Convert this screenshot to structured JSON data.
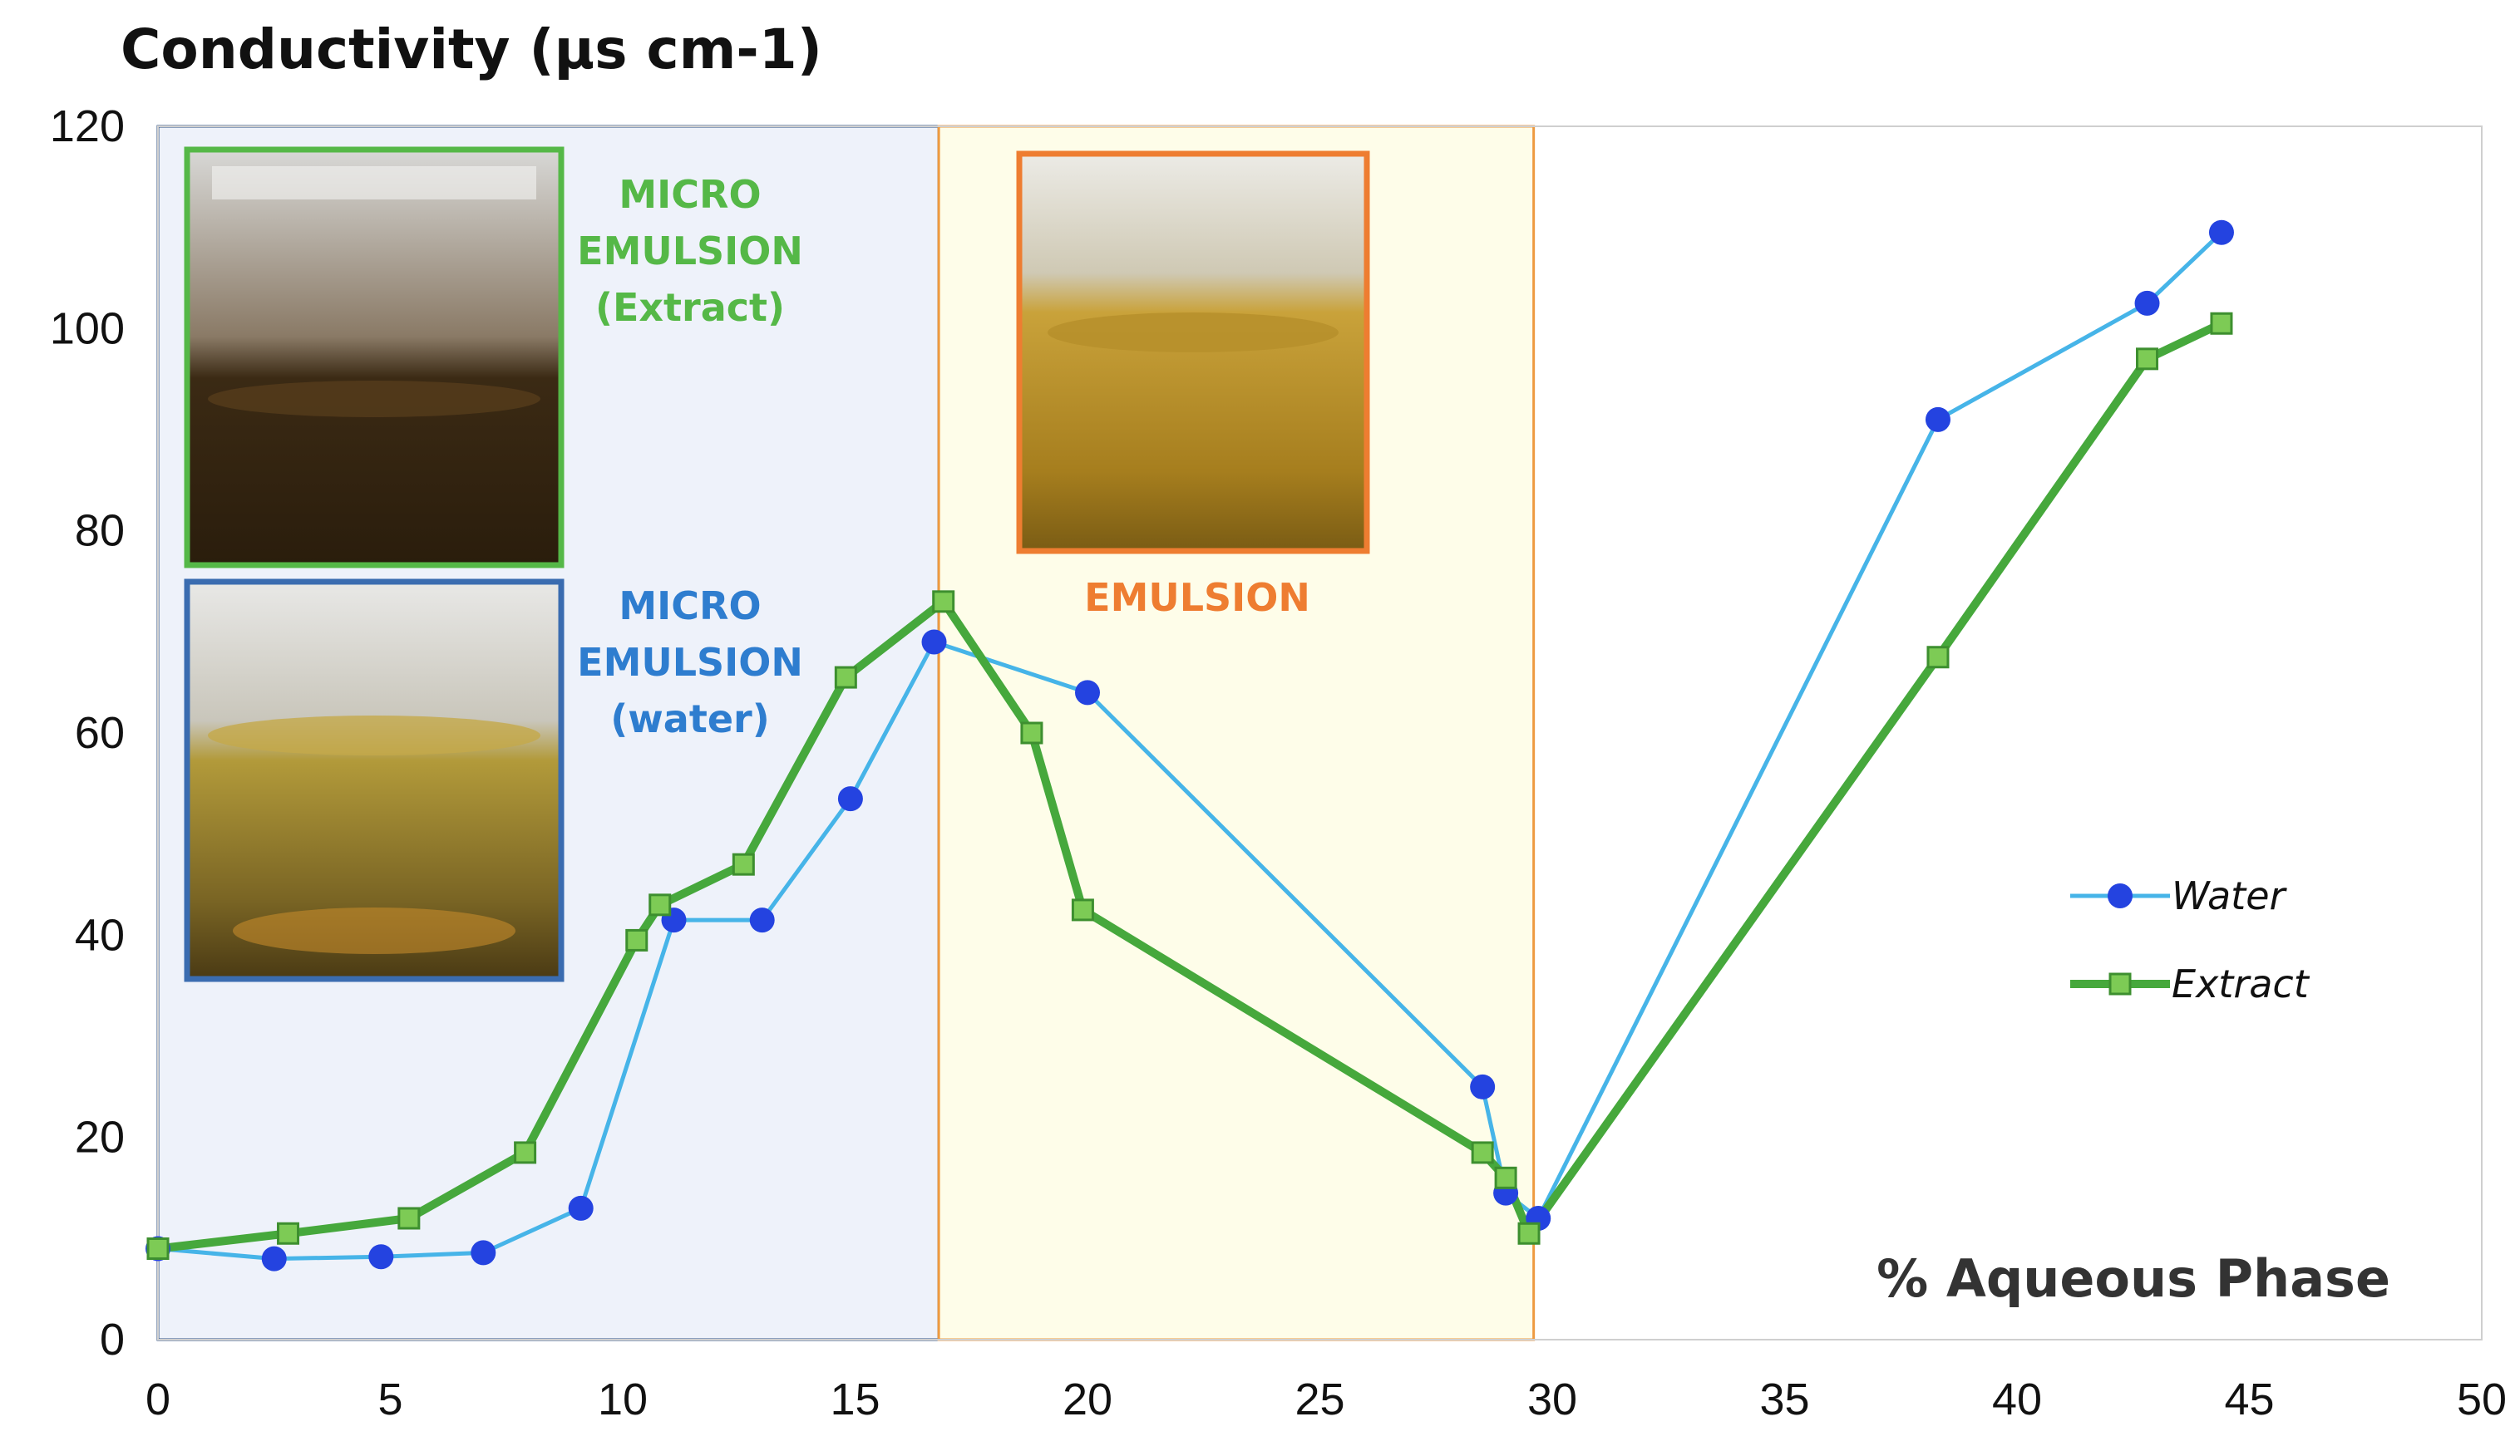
{
  "chart_data": {
    "type": "line",
    "title": "Conductivity (µs cm-1)",
    "xlabel": "% Aqueous Phase",
    "ylabel": "Conductivity (µs cm-1)",
    "xlim": [
      0,
      50
    ],
    "ylim": [
      0,
      120
    ],
    "x_ticks": [
      0,
      5,
      10,
      15,
      20,
      25,
      30,
      35,
      40,
      45,
      50
    ],
    "y_ticks": [
      0,
      20,
      40,
      60,
      80,
      100,
      120
    ],
    "grid": false,
    "legend_position": "right",
    "series": [
      {
        "name": "Water",
        "color": "#46B4E8",
        "marker": "circle",
        "marker_color": "#2443E0",
        "x": [
          0,
          2.5,
          4.8,
          7.0,
          9.1,
          11.1,
          13.0,
          14.9,
          16.7,
          20.0,
          28.5,
          29.0,
          29.7,
          38.3,
          42.8,
          44.4
        ],
        "y": [
          9,
          8,
          8.2,
          8.6,
          13,
          41.5,
          41.5,
          53.5,
          69,
          64,
          25,
          14.5,
          12,
          91,
          102.5,
          109.5
        ]
      },
      {
        "name": "Extract",
        "color": "#46A83C",
        "marker": "square",
        "marker_color": "#7DCB55",
        "x": [
          0,
          2.8,
          5.4,
          7.9,
          10.3,
          10.8,
          12.6,
          14.8,
          16.9,
          18.8,
          19.9,
          28.5,
          29.0,
          29.5,
          38.3,
          42.8,
          44.4
        ],
        "y": [
          9,
          10.5,
          12,
          18.5,
          39.5,
          43,
          47,
          65.5,
          73,
          60,
          42.5,
          18.5,
          16,
          10.5,
          67.5,
          97,
          100.5
        ]
      }
    ],
    "regions": [
      {
        "label_lines": [
          "MICRO",
          "EMULSION",
          "(Extract)"
        ],
        "color": "#55B847"
      },
      {
        "label_lines": [
          "MICRO",
          "EMULSION",
          "(water)"
        ],
        "color": "#2E7DCF"
      },
      {
        "label_lines": [
          "EMULSION"
        ],
        "color": "#EE7D31"
      }
    ],
    "region_fills": {
      "micro": "#EEF2FA",
      "emulsion": "#FEFDE9"
    },
    "region_borders": {
      "micro": "#2B4F82",
      "emulsion": "#EE9A40"
    }
  }
}
